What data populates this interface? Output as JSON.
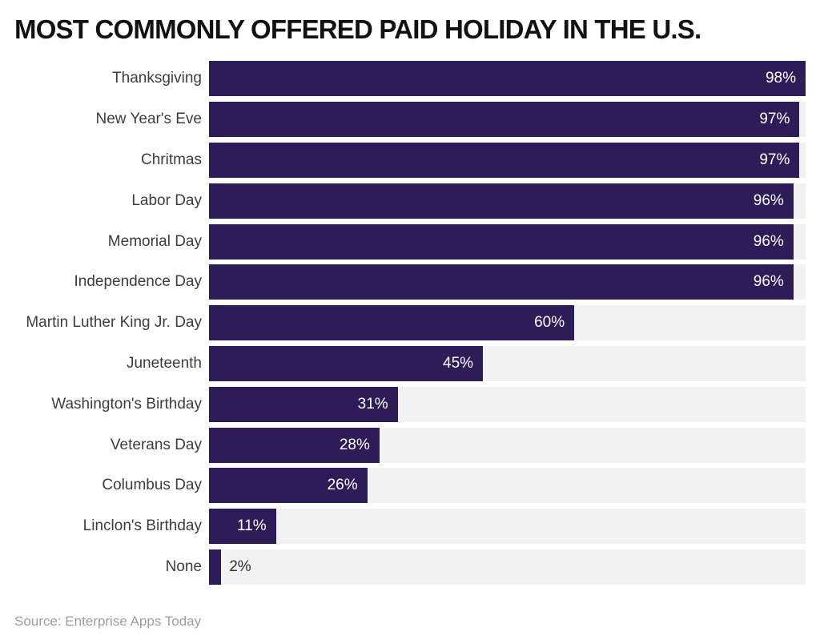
{
  "title": "MOST COMMONLY OFFERED PAID HOLIDAY IN THE U.S.",
  "source": "Source: Enterprise Apps Today",
  "chart_data": {
    "type": "bar",
    "orientation": "horizontal",
    "title": "MOST COMMONLY OFFERED PAID HOLIDAY IN THE U.S.",
    "categories": [
      "Thanksgiving",
      "New Year's Eve",
      "Chritmas",
      "Labor Day",
      "Memorial Day",
      "Independence Day",
      "Martin Luther King Jr. Day",
      "Juneteenth",
      "Washington's Birthday",
      "Veterans Day",
      "Columbus Day",
      "Linclon's Birthday",
      "None"
    ],
    "values": [
      98,
      97,
      97,
      96,
      96,
      96,
      60,
      45,
      31,
      28,
      26,
      11,
      2
    ],
    "value_suffix": "%",
    "xlim": [
      0,
      98
    ],
    "grid": false,
    "legend": false,
    "colors": {
      "bar": "#2e1c58",
      "track": "#f2f2f2",
      "value_label_inside": "#ffffff",
      "value_label_outside": "#2e2e2e",
      "category_label": "#3d3d3d",
      "title": "#121212",
      "source": "#9e9e9e"
    }
  }
}
